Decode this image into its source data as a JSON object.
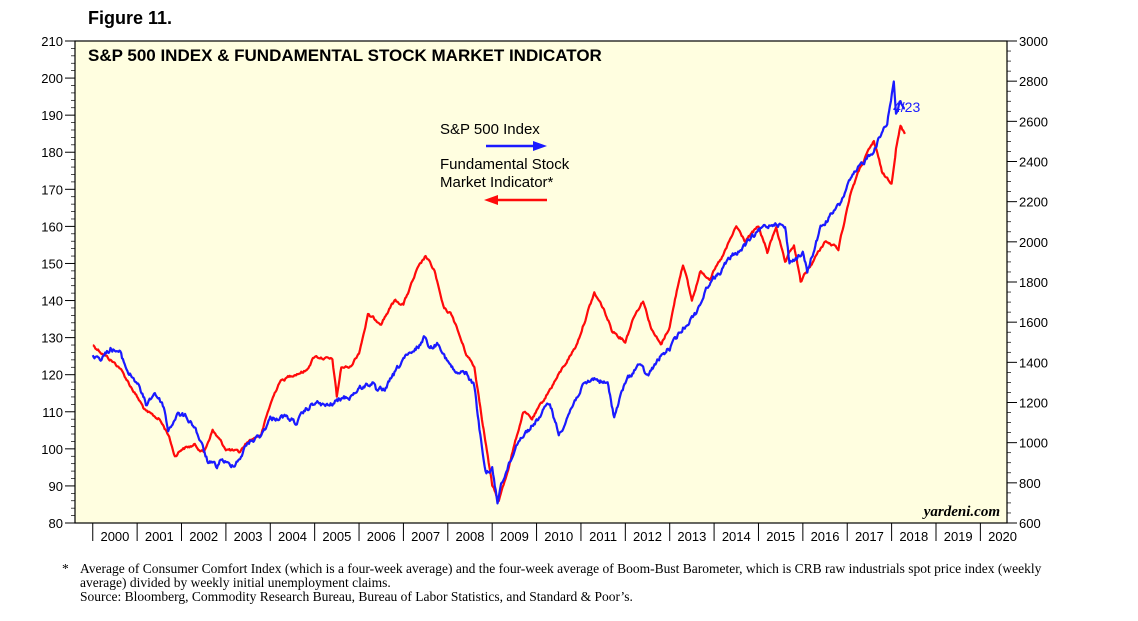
{
  "figure_label": "Figure 11.",
  "chart_data": {
    "type": "line",
    "title": "S&P 500 INDEX & FUNDAMENTAL STOCK MARKET INDICATOR",
    "watermark": "yardeni.com",
    "x_range": [
      1999.6,
      2020.6
    ],
    "x_tick_labels": [
      "2000",
      "2001",
      "2002",
      "2003",
      "2004",
      "2005",
      "2006",
      "2007",
      "2008",
      "2009",
      "2010",
      "2011",
      "2012",
      "2013",
      "2014",
      "2015",
      "2016",
      "2017",
      "2018",
      "2019",
      "2020"
    ],
    "left_axis": {
      "range": [
        80,
        210
      ],
      "ticks": [
        80,
        90,
        100,
        110,
        120,
        130,
        140,
        150,
        160,
        170,
        180,
        190,
        200,
        210
      ]
    },
    "right_axis": {
      "range": [
        600,
        3000
      ],
      "ticks": [
        600,
        800,
        1000,
        1200,
        1400,
        1600,
        1800,
        2000,
        2200,
        2400,
        2600,
        2800,
        3000
      ]
    },
    "end_annotation": "4/23",
    "legend": {
      "sp500": "S&P 500 Index",
      "fsmi_line1": "Fundamental Stock",
      "fsmi_line2": "Market Indicator*"
    },
    "colors": {
      "sp500": "#1a1aff",
      "fsmi": "#ff0a0a",
      "plot_bg": "#fffee0",
      "annotation": "#1a1aff"
    },
    "series": [
      {
        "name": "S&P 500 Index",
        "axis": "right",
        "color": "#1a1aff",
        "x": [
          2000.0,
          2000.2,
          2000.4,
          2000.6,
          2000.8,
          2001.0,
          2001.2,
          2001.4,
          2001.6,
          2001.7,
          2001.9,
          2002.1,
          2002.3,
          2002.5,
          2002.6,
          2002.8,
          2002.9,
          2003.1,
          2003.3,
          2003.5,
          2003.8,
          2004.0,
          2004.3,
          2004.6,
          2004.8,
          2005.0,
          2005.3,
          2005.6,
          2005.8,
          2006.0,
          2006.3,
          2006.4,
          2006.6,
          2006.9,
          2007.0,
          2007.2,
          2007.5,
          2007.6,
          2007.8,
          2008.0,
          2008.2,
          2008.4,
          2008.6,
          2008.75,
          2008.85,
          2009.0,
          2009.12,
          2009.2,
          2009.4,
          2009.6,
          2009.8,
          2010.0,
          2010.3,
          2010.5,
          2010.8,
          2011.0,
          2011.3,
          2011.6,
          2011.75,
          2012.0,
          2012.3,
          2012.5,
          2012.8,
          2013.0,
          2013.3,
          2013.6,
          2013.9,
          2014.1,
          2014.4,
          2014.6,
          2014.9,
          2015.1,
          2015.4,
          2015.6,
          2015.7,
          2016.0,
          2016.1,
          2016.4,
          2016.7,
          2016.85,
          2017.0,
          2017.3,
          2017.6,
          2017.9,
          2018.05,
          2018.1,
          2018.2,
          2018.3
        ],
        "values": [
          1440,
          1420,
          1470,
          1450,
          1350,
          1300,
          1190,
          1250,
          1180,
          1060,
          1140,
          1130,
          1080,
          960,
          900,
          880,
          920,
          880,
          920,
          1000,
          1040,
          1120,
          1130,
          1100,
          1160,
          1200,
          1180,
          1220,
          1230,
          1270,
          1300,
          1250,
          1270,
          1380,
          1420,
          1440,
          1530,
          1470,
          1500,
          1400,
          1340,
          1350,
          1280,
          1000,
          850,
          870,
          700,
          800,
          900,
          1020,
          1060,
          1110,
          1200,
          1040,
          1180,
          1270,
          1320,
          1290,
          1130,
          1300,
          1390,
          1330,
          1430,
          1470,
          1570,
          1650,
          1800,
          1840,
          1930,
          1960,
          2030,
          2070,
          2100,
          2070,
          1900,
          1940,
          1850,
          2070,
          2150,
          2190,
          2280,
          2380,
          2460,
          2600,
          2800,
          2640,
          2700,
          2660
        ]
      },
      {
        "name": "Fundamental Stock Market Indicator",
        "axis": "left",
        "color": "#ff0a0a",
        "x": [
          2000.0,
          2000.3,
          2000.6,
          2000.9,
          2001.2,
          2001.5,
          2001.7,
          2001.85,
          2002.0,
          2002.3,
          2002.5,
          2002.7,
          2003.0,
          2003.3,
          2003.5,
          2003.8,
          2004.0,
          2004.2,
          2004.5,
          2004.8,
          2005.0,
          2005.4,
          2005.5,
          2005.6,
          2005.8,
          2006.0,
          2006.2,
          2006.5,
          2006.8,
          2007.0,
          2007.3,
          2007.5,
          2007.7,
          2007.9,
          2008.1,
          2008.4,
          2008.6,
          2008.75,
          2008.9,
          2009.0,
          2009.15,
          2009.3,
          2009.5,
          2009.7,
          2009.9,
          2010.2,
          2010.4,
          2010.6,
          2010.9,
          2011.1,
          2011.3,
          2011.5,
          2011.7,
          2012.0,
          2012.2,
          2012.4,
          2012.6,
          2012.8,
          2013.0,
          2013.2,
          2013.3,
          2013.5,
          2013.7,
          2013.9,
          2014.2,
          2014.5,
          2014.7,
          2015.0,
          2015.2,
          2015.4,
          2015.6,
          2015.8,
          2015.95,
          2016.2,
          2016.5,
          2016.8,
          2017.0,
          2017.1,
          2017.3,
          2017.6,
          2017.8,
          2018.0,
          2018.1,
          2018.2,
          2018.3
        ],
        "values": [
          128,
          125,
          122,
          116,
          110,
          108,
          104,
          98,
          100,
          101,
          99,
          105,
          100,
          99,
          102,
          104,
          112,
          118,
          120,
          121,
          125,
          124,
          114,
          122,
          122,
          126,
          136,
          134,
          140,
          139,
          148,
          152,
          148,
          138,
          136,
          126,
          122,
          110,
          98,
          90,
          86,
          92,
          101,
          110,
          108,
          114,
          118,
          122,
          128,
          135,
          142,
          138,
          132,
          129,
          136,
          140,
          132,
          128,
          133,
          145,
          150,
          140,
          148,
          146,
          152,
          160,
          156,
          160,
          153,
          160,
          150,
          155,
          145,
          150,
          156,
          154,
          165,
          170,
          176,
          183,
          174,
          172,
          181,
          187,
          185
        ]
      }
    ]
  },
  "footnote": {
    "marker": "*",
    "text": "Average of Consumer Comfort Index (which is a four-week average) and the four-week average of Boom-Bust Barometer, which is CRB raw industrials spot price index (weekly average) divided by weekly initial unemployment claims.",
    "source": "Source: Bloomberg, Commodity Research Bureau, Bureau of Labor Statistics, and Standard & Poor’s."
  }
}
